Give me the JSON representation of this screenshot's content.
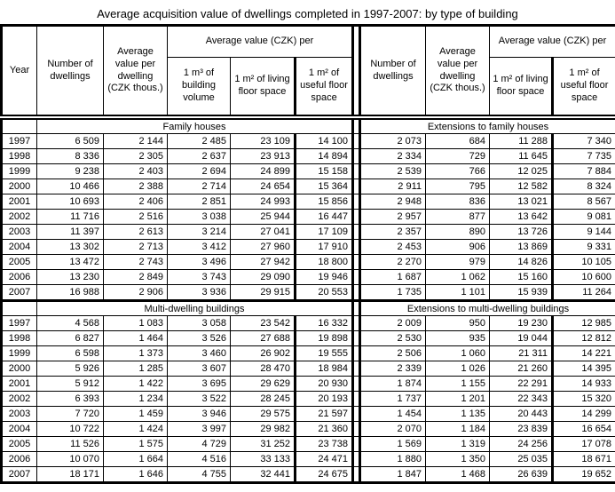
{
  "title": "Average acquisition value of dwellings completed in 1997-2007: by type of building",
  "columns": {
    "year": "Year",
    "number_of_dwellings": "Number of dwellings",
    "avg_value_per_dwelling": "Average value per dwelling (CZK thous.)",
    "avg_value_group": "Average value (CZK) per",
    "per_m3_building_volume": "1 m³ of building volume",
    "per_m2_living": "1 m² of living floor space",
    "per_m2_useful": "1 m² of useful floor space"
  },
  "sections": [
    {
      "left_title": "Family houses",
      "right_title": "Extensions to family houses",
      "rows": [
        {
          "year": "1997",
          "left": [
            "6 509",
            "2 144",
            "2 485",
            "23 109",
            "14 100"
          ],
          "right": [
            "2 073",
            "684",
            "11 288",
            "7 340"
          ]
        },
        {
          "year": "1998",
          "left": [
            "8 336",
            "2 305",
            "2 637",
            "23 913",
            "14 894"
          ],
          "right": [
            "2 334",
            "729",
            "11 645",
            "7 735"
          ]
        },
        {
          "year": "1999",
          "left": [
            "9 238",
            "2 403",
            "2 694",
            "24 899",
            "15 158"
          ],
          "right": [
            "2 539",
            "766",
            "12 025",
            "7 884"
          ]
        },
        {
          "year": "2000",
          "left": [
            "10 466",
            "2 388",
            "2 714",
            "24 654",
            "15 364"
          ],
          "right": [
            "2 911",
            "795",
            "12 582",
            "8 324"
          ]
        },
        {
          "year": "2001",
          "left": [
            "10 693",
            "2 406",
            "2 851",
            "24 993",
            "15 856"
          ],
          "right": [
            "2 948",
            "836",
            "13 021",
            "8 567"
          ]
        },
        {
          "year": "2002",
          "left": [
            "11 716",
            "2 516",
            "3 038",
            "25 944",
            "16 447"
          ],
          "right": [
            "2 957",
            "877",
            "13 642",
            "9 081"
          ]
        },
        {
          "year": "2003",
          "left": [
            "11 397",
            "2 613",
            "3 214",
            "27 041",
            "17 109"
          ],
          "right": [
            "2 357",
            "890",
            "13 726",
            "9 144"
          ]
        },
        {
          "year": "2004",
          "left": [
            "13 302",
            "2 713",
            "3 412",
            "27 960",
            "17 910"
          ],
          "right": [
            "2 453",
            "906",
            "13 869",
            "9 331"
          ]
        },
        {
          "year": "2005",
          "left": [
            "13 472",
            "2 743",
            "3 496",
            "27 942",
            "18 800"
          ],
          "right": [
            "2 270",
            "979",
            "14 826",
            "10 105"
          ]
        },
        {
          "year": "2006",
          "left": [
            "13 230",
            "2 849",
            "3 743",
            "29 090",
            "19 946"
          ],
          "right": [
            "1 687",
            "1 062",
            "15 160",
            "10 600"
          ]
        },
        {
          "year": "2007",
          "left": [
            "16 988",
            "2 906",
            "3 936",
            "29 915",
            "20 553"
          ],
          "right": [
            "1 735",
            "1 101",
            "15 939",
            "11 264"
          ]
        }
      ]
    },
    {
      "left_title": "Multi-dwelling buildings",
      "right_title": "Extensions to multi-dwelling buildings",
      "rows": [
        {
          "year": "1997",
          "left": [
            "4 568",
            "1 083",
            "3 058",
            "23 542",
            "16 332"
          ],
          "right": [
            "2 009",
            "950",
            "19 230",
            "12 985"
          ]
        },
        {
          "year": "1998",
          "left": [
            "6 827",
            "1 464",
            "3 526",
            "27 688",
            "19 898"
          ],
          "right": [
            "2 530",
            "935",
            "19 044",
            "12 812"
          ]
        },
        {
          "year": "1999",
          "left": [
            "6 598",
            "1 373",
            "3 460",
            "26 902",
            "19 555"
          ],
          "right": [
            "2 506",
            "1 060",
            "21 311",
            "14 221"
          ]
        },
        {
          "year": "2000",
          "left": [
            "5 926",
            "1 285",
            "3 607",
            "28 470",
            "18 984"
          ],
          "right": [
            "2 339",
            "1 026",
            "21 260",
            "14 395"
          ]
        },
        {
          "year": "2001",
          "left": [
            "5 912",
            "1 422",
            "3 695",
            "29 629",
            "20 930"
          ],
          "right": [
            "1 874",
            "1 155",
            "22 291",
            "14 933"
          ]
        },
        {
          "year": "2002",
          "left": [
            "6 393",
            "1 234",
            "3 522",
            "28 245",
            "20 193"
          ],
          "right": [
            "1 737",
            "1 201",
            "22 343",
            "15 320"
          ]
        },
        {
          "year": "2003",
          "left": [
            "7 720",
            "1 459",
            "3 946",
            "29 575",
            "21 597"
          ],
          "right": [
            "1 454",
            "1 135",
            "20 443",
            "14 299"
          ]
        },
        {
          "year": "2004",
          "left": [
            "10 722",
            "1 424",
            "3 997",
            "29 982",
            "21 360"
          ],
          "right": [
            "2 070",
            "1 184",
            "23 839",
            "16 654"
          ]
        },
        {
          "year": "2005",
          "left": [
            "11 526",
            "1 575",
            "4 729",
            "31 252",
            "23 738"
          ],
          "right": [
            "1 569",
            "1 319",
            "24 256",
            "17 078"
          ]
        },
        {
          "year": "2006",
          "left": [
            "10 070",
            "1 664",
            "4 516",
            "33 133",
            "24 471"
          ],
          "right": [
            "1 880",
            "1 350",
            "25 035",
            "18 671"
          ]
        },
        {
          "year": "2007",
          "left": [
            "18 171",
            "1 646",
            "4 755",
            "32 441",
            "24 675"
          ],
          "right": [
            "1 847",
            "1 468",
            "26 639",
            "19 652"
          ]
        }
      ]
    }
  ]
}
